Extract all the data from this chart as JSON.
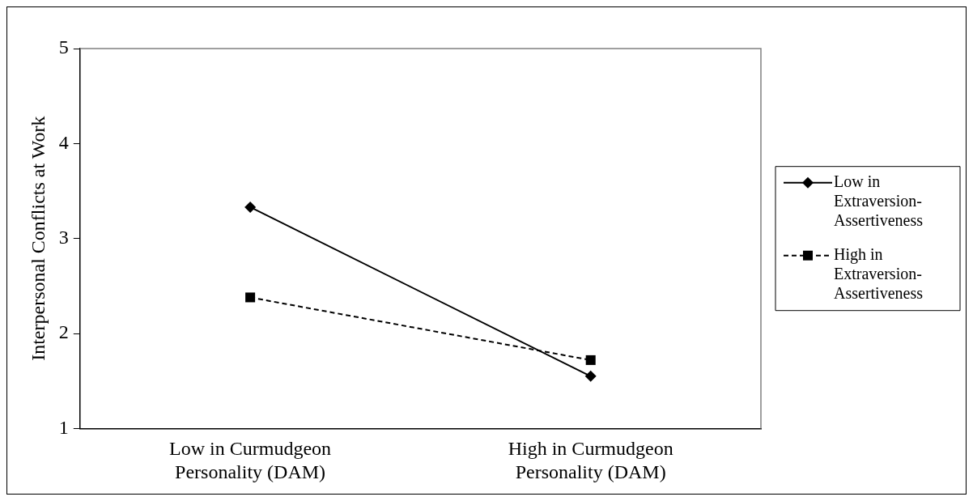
{
  "chart_data": {
    "type": "line",
    "ylabel": "Interpersonal Conflicts at Work",
    "categories": [
      "Low in Curmudgeon Personality (DAM)",
      "High in Curmudgeon Personality (DAM)"
    ],
    "series": [
      {
        "name": "Low in Extraversion-Assertiveness",
        "color": "#000000",
        "values": [
          3.33,
          1.55
        ],
        "marker": "diamond",
        "line_style": "solid"
      },
      {
        "name": "High in Extraversion-Assertiveness",
        "color": "#000000",
        "values": [
          2.38,
          1.72
        ],
        "marker": "square",
        "line_style": "dashed"
      }
    ],
    "ylim": [
      1,
      5
    ],
    "yticks": [
      1,
      2,
      3,
      4,
      5
    ],
    "grid": false,
    "legend": "right"
  }
}
